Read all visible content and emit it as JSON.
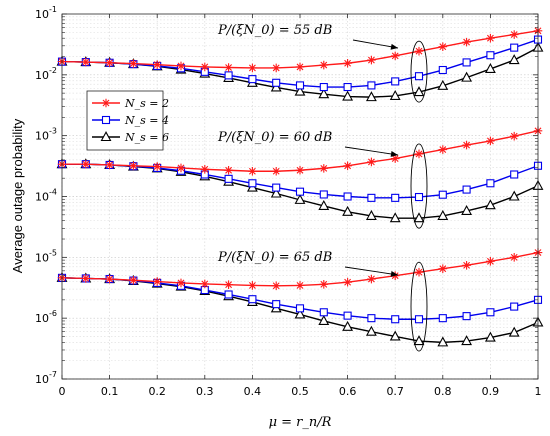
{
  "chart_data": {
    "type": "line",
    "y_scale": "log",
    "title": "",
    "xlabel": "μ = r_n/R",
    "ylabel": "Average outage probability",
    "xlim": [
      0,
      1
    ],
    "ylim": [
      1e-07,
      0.1
    ],
    "grid": true,
    "legend_position": "middle-left",
    "x": [
      0,
      0.05,
      0.1,
      0.15,
      0.2,
      0.25,
      0.3,
      0.35,
      0.4,
      0.45,
      0.5,
      0.55,
      0.6,
      0.65,
      0.7,
      0.75,
      0.8,
      0.85,
      0.9,
      0.95,
      1.0
    ],
    "x_tick_labels": [
      "0",
      "0.1",
      "0.2",
      "0.3",
      "0.4",
      "0.5",
      "0.6",
      "0.7",
      "0.8",
      "0.9",
      "1"
    ],
    "y_tick_labels": [
      {
        "base": "10",
        "exp": "-7"
      },
      {
        "base": "10",
        "exp": "-6"
      },
      {
        "base": "10",
        "exp": "-5"
      },
      {
        "base": "10",
        "exp": "-4"
      },
      {
        "base": "10",
        "exp": "-3"
      },
      {
        "base": "10",
        "exp": "-2"
      },
      {
        "base": "10",
        "exp": "-1"
      }
    ],
    "legend": [
      {
        "label": "N_s = 2",
        "color": "#ff1a1a",
        "marker": "asterisk"
      },
      {
        "label": "N_s = 4",
        "color": "#0000ee",
        "marker": "square"
      },
      {
        "label": "N_s = 6",
        "color": "#000000",
        "marker": "triangle"
      }
    ],
    "groups": [
      {
        "annotation": "P/(ξN_0) = 55 dB",
        "series": [
          {
            "name": "N_s = 2",
            "values": [
              0.0165,
              0.0162,
              0.0158,
              0.0153,
              0.0147,
              0.014,
              0.0135,
              0.0132,
              0.013,
              0.013,
              0.0135,
              0.0145,
              0.0155,
              0.0175,
              0.0205,
              0.0245,
              0.029,
              0.0345,
              0.04,
              0.046,
              0.053
            ]
          },
          {
            "name": "N_s = 4",
            "values": [
              0.0165,
              0.0162,
              0.0158,
              0.015,
              0.014,
              0.0128,
              0.0112,
              0.0098,
              0.0085,
              0.0074,
              0.0067,
              0.0063,
              0.0063,
              0.0067,
              0.0078,
              0.0095,
              0.012,
              0.016,
              0.021,
              0.028,
              0.038
            ]
          },
          {
            "name": "N_s = 6",
            "values": [
              0.0165,
              0.0162,
              0.0158,
              0.015,
              0.0138,
              0.0122,
              0.0105,
              0.0089,
              0.0074,
              0.0062,
              0.0053,
              0.0048,
              0.0044,
              0.0043,
              0.0045,
              0.0052,
              0.0066,
              0.009,
              0.0125,
              0.0175,
              0.028
            ]
          }
        ]
      },
      {
        "annotation": "P/(ξN_0) = 60 dB",
        "series": [
          {
            "name": "N_s = 2",
            "values": [
              0.00034,
              0.00034,
              0.00033,
              0.00032,
              0.00031,
              0.000295,
              0.00028,
              0.00027,
              0.00026,
              0.00026,
              0.00027,
              0.00029,
              0.00032,
              0.00037,
              0.00042,
              0.0005,
              0.00059,
              0.0007,
              0.00082,
              0.00098,
              0.0012
            ]
          },
          {
            "name": "N_s = 4",
            "values": [
              0.00034,
              0.00034,
              0.00033,
              0.000315,
              0.000295,
              0.000265,
              0.00023,
              0.000195,
              0.000165,
              0.00014,
              0.00012,
              0.000108,
              0.0001,
              9.5e-05,
              9.5e-05,
              9.8e-05,
              0.000107,
              0.00013,
              0.000165,
              0.00023,
              0.00032
            ]
          },
          {
            "name": "N_s = 6",
            "values": [
              0.00034,
              0.00034,
              0.00033,
              0.00031,
              0.00029,
              0.000255,
              0.000215,
              0.000175,
              0.00014,
              0.000112,
              8.8e-05,
              7e-05,
              5.6e-05,
              4.8e-05,
              4.4e-05,
              4.4e-05,
              4.8e-05,
              5.8e-05,
              7.2e-05,
              0.0001,
              0.00015
            ]
          }
        ]
      },
      {
        "annotation": "P/(ξN_0) = 65 dB",
        "series": [
          {
            "name": "N_s = 2",
            "values": [
              4.6e-06,
              4.5e-06,
              4.4e-06,
              4.2e-06,
              4e-06,
              3.8e-06,
              3.65e-06,
              3.55e-06,
              3.45e-06,
              3.4e-06,
              3.45e-06,
              3.6e-06,
              3.9e-06,
              4.4e-06,
              5e-06,
              5.7e-06,
              6.5e-06,
              7.4e-06,
              8.6e-06,
              1e-05,
              1.2e-05
            ]
          },
          {
            "name": "N_s = 4",
            "values": [
              4.6e-06,
              4.5e-06,
              4.4e-06,
              4.15e-06,
              3.8e-06,
              3.4e-06,
              2.9e-06,
              2.45e-06,
              2.05e-06,
              1.7e-06,
              1.45e-06,
              1.25e-06,
              1.1e-06,
              1e-06,
              9.6e-07,
              9.6e-07,
              1e-06,
              1.08e-06,
              1.25e-06,
              1.55e-06,
              2e-06
            ]
          },
          {
            "name": "N_s = 6",
            "values": [
              4.6e-06,
              4.5e-06,
              4.4e-06,
              4.1e-06,
              3.7e-06,
              3.3e-06,
              2.8e-06,
              2.3e-06,
              1.85e-06,
              1.45e-06,
              1.15e-06,
              9e-07,
              7.2e-07,
              6e-07,
              5e-07,
              4.2e-07,
              4e-07,
              4.2e-07,
              4.8e-07,
              5.8e-07,
              8.5e-07
            ]
          }
        ]
      }
    ]
  }
}
